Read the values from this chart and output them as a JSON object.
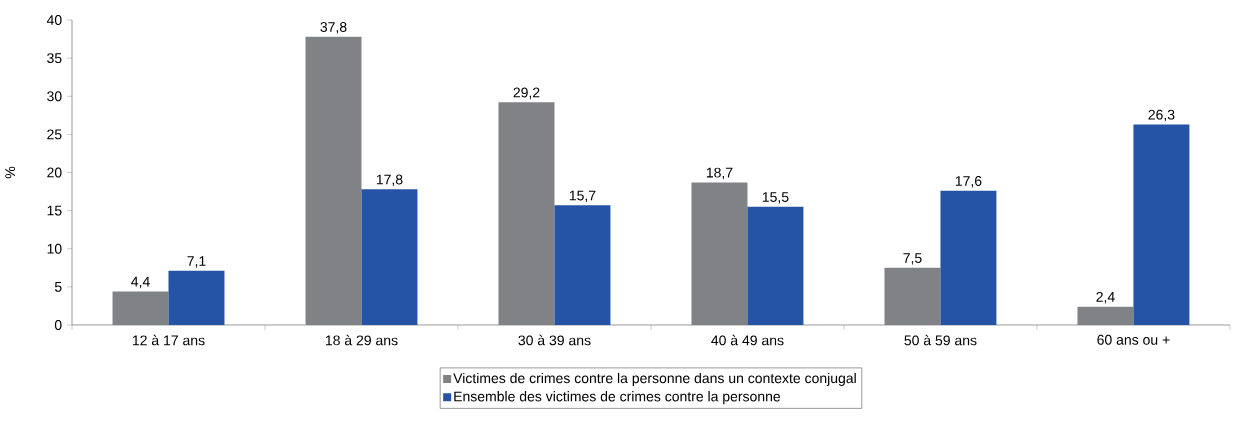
{
  "chart_data": {
    "type": "bar",
    "ylabel": "%",
    "categories": [
      "12 à 17 ans",
      "18 à 29 ans",
      "30 à 39 ans",
      "40 à 49 ans",
      "50 à 59 ans",
      "60 ans ou +"
    ],
    "series": [
      {
        "name": "Victimes de crimes contre la personne dans un contexte conjugal",
        "color": "#808285",
        "values": [
          4.4,
          37.8,
          29.2,
          18.7,
          7.5,
          2.4
        ],
        "value_labels": [
          "4,4",
          "37,8",
          "29,2",
          "18,7",
          "7,5",
          "2,4"
        ]
      },
      {
        "name": "Ensemble des victimes de crimes contre la personne",
        "color": "#2553a5",
        "values": [
          7.1,
          17.8,
          15.7,
          15.5,
          17.6,
          26.3
        ],
        "value_labels": [
          "7,1",
          "17,8",
          "15,7",
          "15,5",
          "17,6",
          "26,3"
        ]
      }
    ],
    "ylim": [
      0,
      40
    ],
    "yticks": [
      0,
      5,
      10,
      15,
      20,
      25,
      30,
      35,
      40
    ],
    "grid": false,
    "legend": "bottom"
  }
}
